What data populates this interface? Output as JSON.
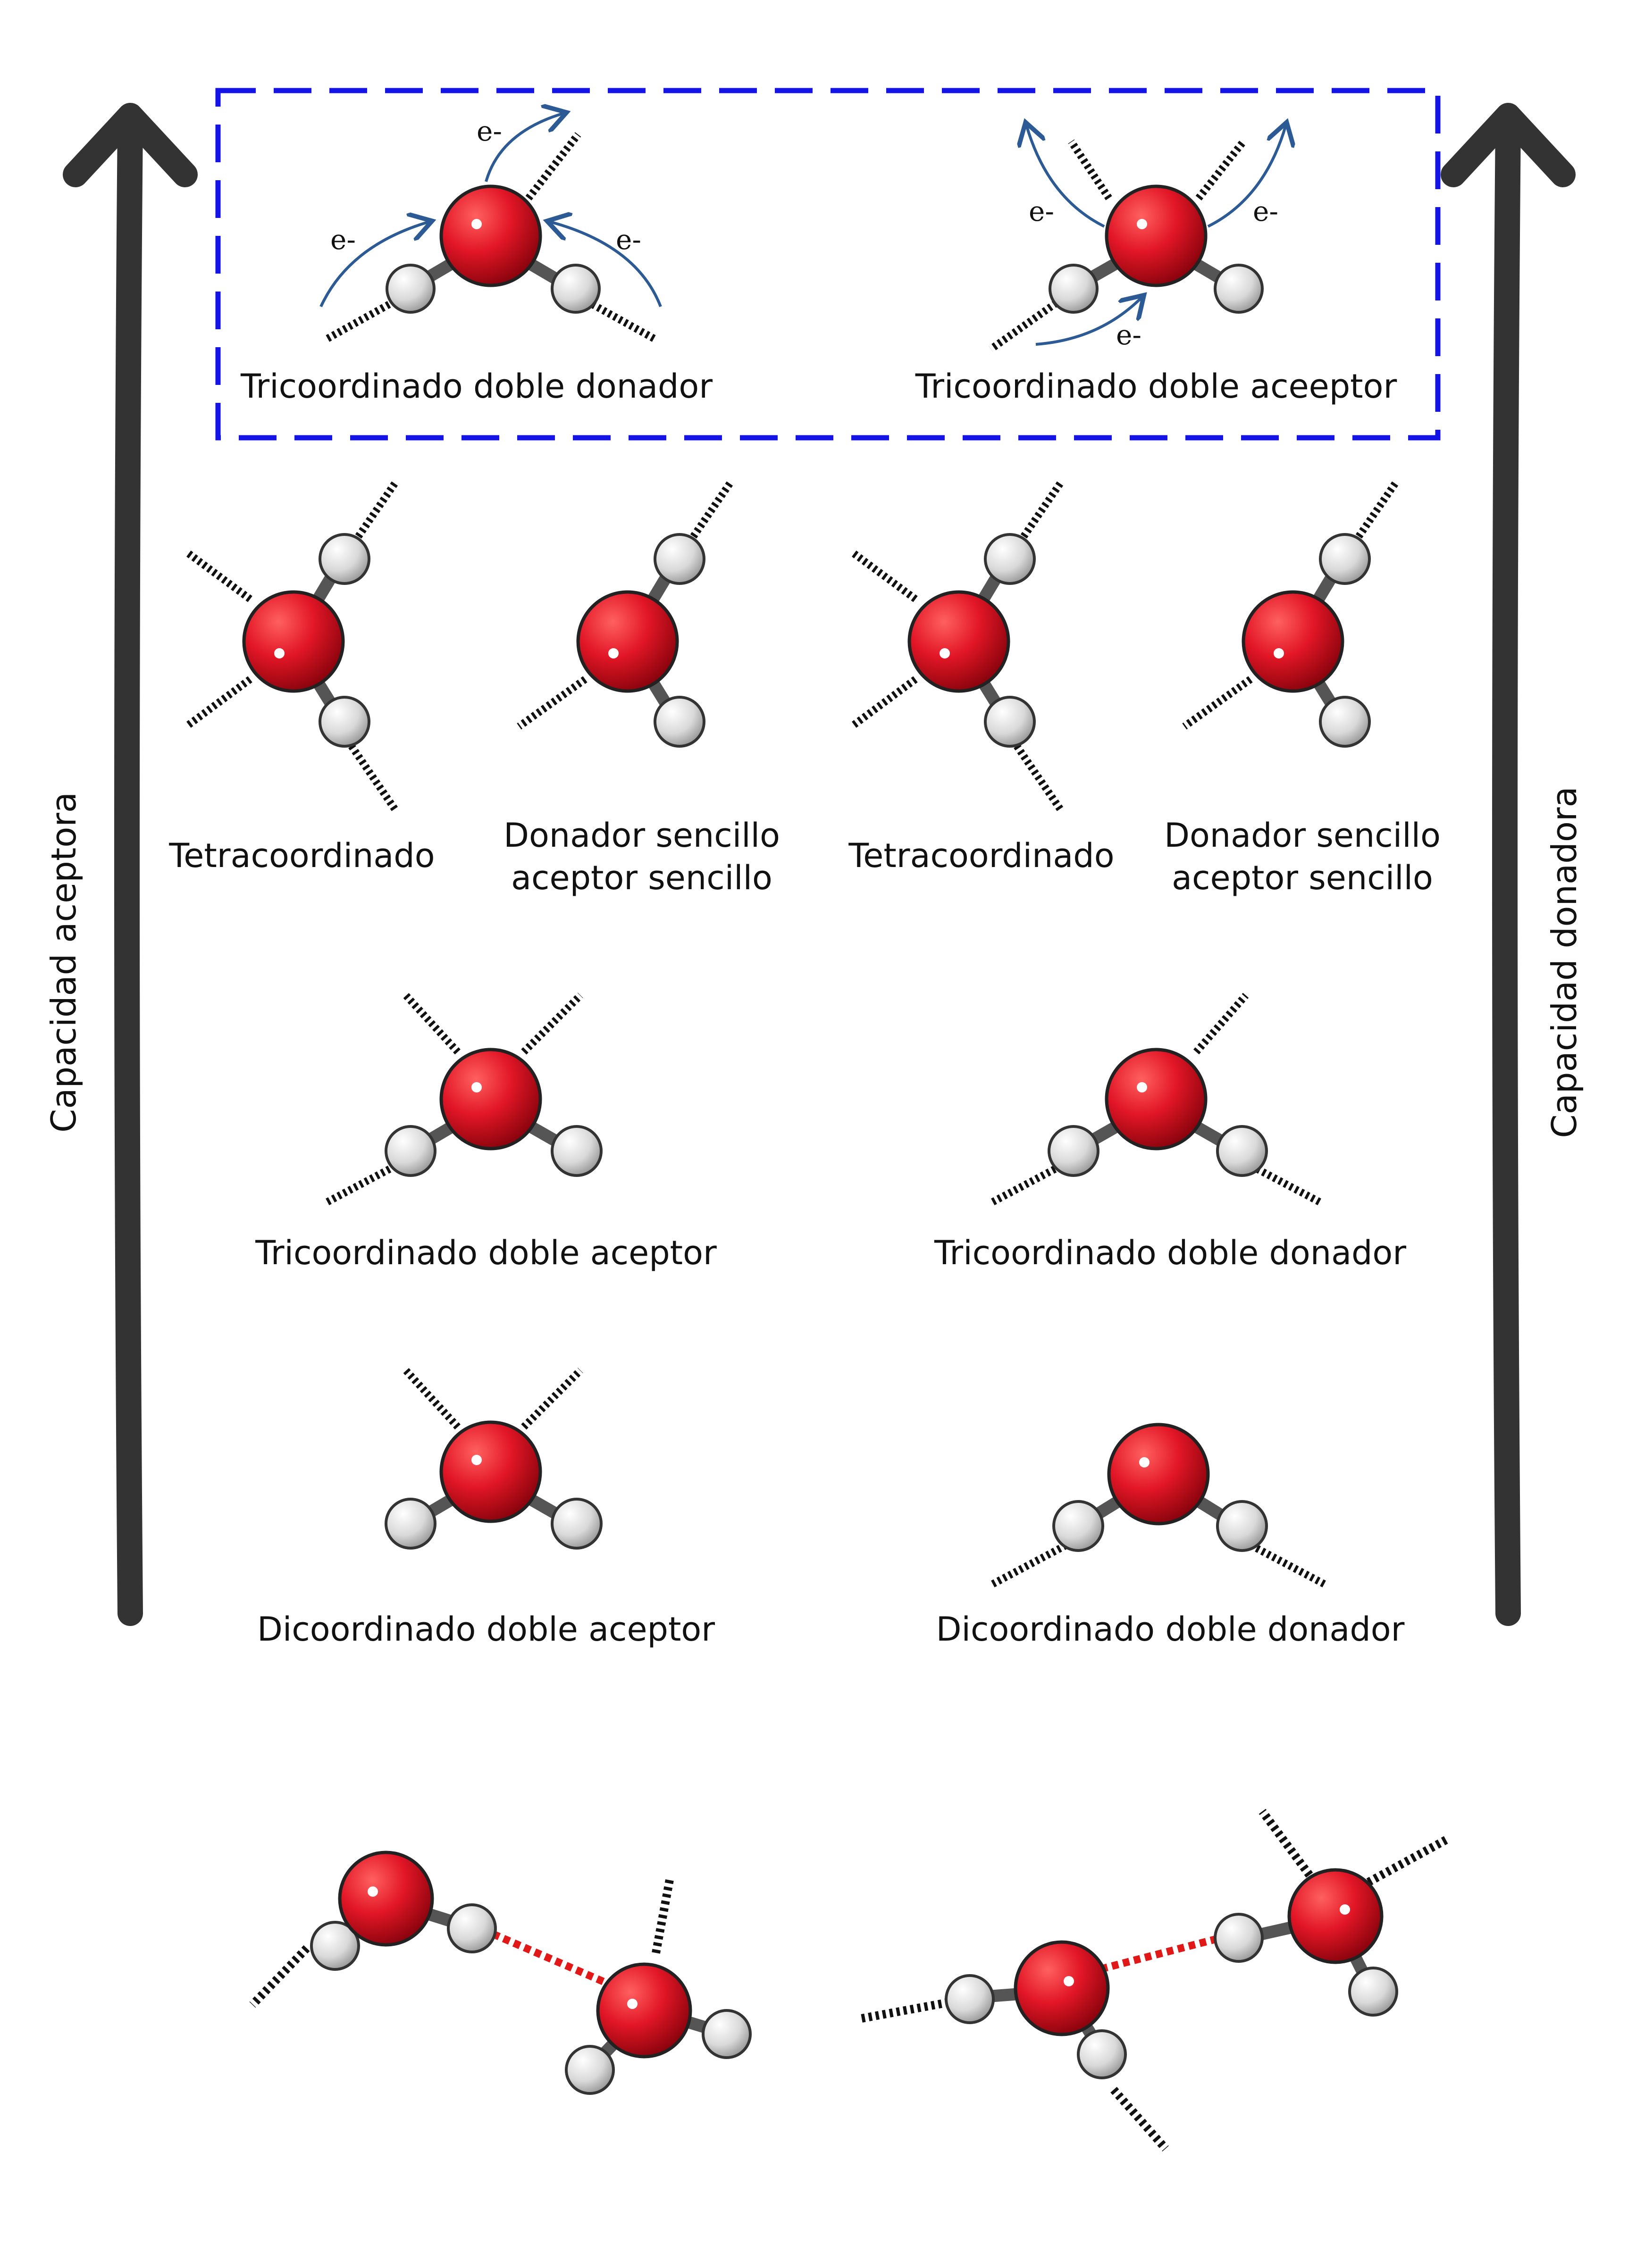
{
  "axes": {
    "left_label": "Capacidad aceptora",
    "right_label": "Capacidad donadora"
  },
  "highlight": {
    "border_color": "#1414e6",
    "left_caption": "Tricoordinado doble donador",
    "right_caption": "Tricoordinado doble aceeptor",
    "electron": "e-",
    "arrow_color": "#2b5a94"
  },
  "row2": {
    "c1": "Tetracoordinado",
    "c2_line1": "Donador sencillo",
    "c2_line2": "aceptor sencillo",
    "c3": "Tetracoordinado",
    "c4_line1": "Donador sencillo",
    "c4_line2": "aceptor sencillo"
  },
  "row3": {
    "left": "Tricoordinado doble aceptor",
    "right": "Tricoordinado doble donador"
  },
  "row4": {
    "left": "Dicoordinado doble aceptor",
    "right": "Dicoordinado doble donador"
  },
  "colors": {
    "oxygen": "#e01020",
    "hydrogen": "#d8d8d8",
    "bond_hb": "#e01818",
    "axis_arrow": "#333333"
  }
}
